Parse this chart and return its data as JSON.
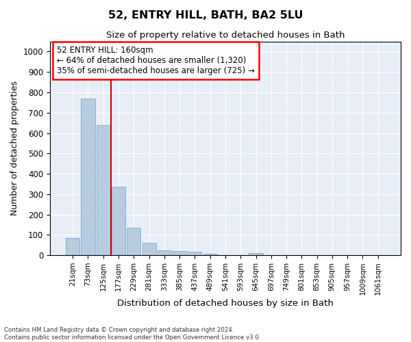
{
  "title": "52, ENTRY HILL, BATH, BA2 5LU",
  "subtitle": "Size of property relative to detached houses in Bath",
  "xlabel": "Distribution of detached houses by size in Bath",
  "ylabel": "Number of detached properties",
  "footnote1": "Contains HM Land Registry data © Crown copyright and database right 2024.",
  "footnote2": "Contains public sector information licensed under the Open Government Licence v3.0.",
  "bar_labels": [
    "21sqm",
    "73sqm",
    "125sqm",
    "177sqm",
    "229sqm",
    "281sqm",
    "333sqm",
    "385sqm",
    "437sqm",
    "489sqm",
    "541sqm",
    "593sqm",
    "645sqm",
    "697sqm",
    "749sqm",
    "801sqm",
    "853sqm",
    "905sqm",
    "957sqm",
    "1009sqm",
    "1061sqm"
  ],
  "bar_values": [
    85,
    770,
    640,
    335,
    135,
    60,
    25,
    22,
    18,
    7,
    0,
    0,
    10,
    0,
    0,
    0,
    0,
    0,
    0,
    0,
    0
  ],
  "bar_color": "#b8ccdf",
  "bar_edge_color": "#7aaace",
  "vline_x": 2.5,
  "vline_color": "#cc0000",
  "ylim": [
    0,
    1050
  ],
  "yticks": [
    0,
    100,
    200,
    300,
    400,
    500,
    600,
    700,
    800,
    900,
    1000
  ],
  "annotation_text": "52 ENTRY HILL: 160sqm\n← 64% of detached houses are smaller (1,320)\n35% of semi-detached houses are larger (725) →",
  "background_color": "#e8eef8",
  "grid_color": "#ffffff",
  "fig_bg": "#ffffff"
}
